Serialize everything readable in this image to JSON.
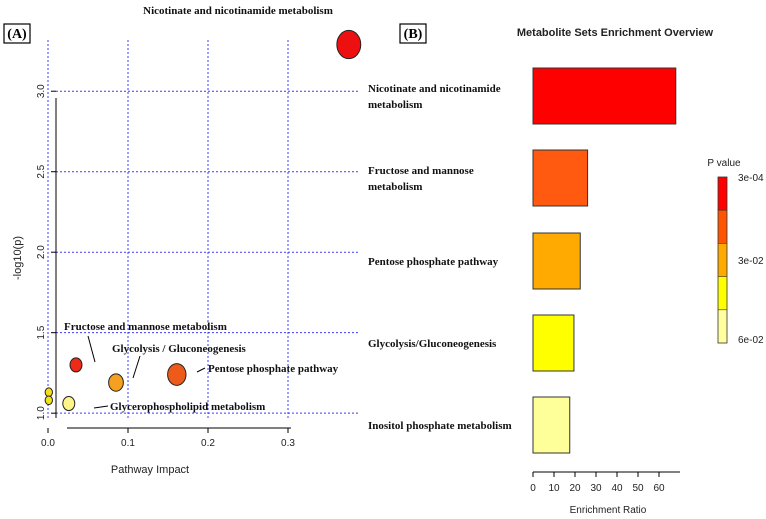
{
  "chart_data": [
    {
      "type": "scatter",
      "panel_label": "(A)",
      "xlabel": "Pathway Impact",
      "ylabel": "-log10(p)",
      "xlim": [
        -0.01,
        0.39
      ],
      "ylim": [
        0.97,
        3.43
      ],
      "x_ticks": [
        0.0,
        0.1,
        0.2,
        0.3
      ],
      "x_tick_labels": [
        "0.0",
        "0.1",
        "0.2",
        "0.3"
      ],
      "y_ticks": [
        1.0,
        1.5,
        2.0,
        2.5,
        3.0
      ],
      "y_tick_labels": [
        "1.0",
        "1.5",
        "2.0",
        "2.5",
        "3.0"
      ],
      "grid": true,
      "points": [
        {
          "label": "Nicotinate and nicotinamide metabolism",
          "x": 0.376,
          "y": 3.29,
          "size": 2.6,
          "color": "#ee1010"
        },
        {
          "label": "Pentose phosphate pathway",
          "x": 0.161,
          "y": 1.24,
          "size": 2.0,
          "color": "#ee5a1a"
        },
        {
          "label": "Glycolysis / Gluconeogenesis",
          "x": 0.085,
          "y": 1.19,
          "size": 1.6,
          "color": "#f5a020"
        },
        {
          "label": "Fructose and mannose metabolism",
          "x": 0.035,
          "y": 1.3,
          "size": 1.3,
          "color": "#ee2a18"
        },
        {
          "label": "Glycerophospholipid metabolism",
          "x": 0.026,
          "y": 1.06,
          "size": 1.3,
          "color": "#fdf48a"
        },
        {
          "label": "",
          "x": 0.001,
          "y": 1.13,
          "size": 0.8,
          "color": "#f6dc1c"
        },
        {
          "label": "",
          "x": 0.001,
          "y": 1.08,
          "size": 0.8,
          "color": "#f2e218"
        }
      ],
      "annotations": [
        {
          "text": "Nicotinate and nicotinamide metabolism",
          "target": 0
        },
        {
          "text": "Fructose and mannose metabolism",
          "target": 3
        },
        {
          "text": "Glycolysis / Gluconeogenesis",
          "target": 2
        },
        {
          "text": "Pentose phosphate pathway",
          "target": 1
        },
        {
          "text": "Glycerophospholipid  metabolism",
          "target": 4
        }
      ]
    },
    {
      "type": "bar",
      "orientation": "horizontal",
      "panel_label": "(B)",
      "title": "Metabolite Sets Enrichment Overview",
      "xlabel": "Enrichment Ratio",
      "xlim": [
        0,
        70
      ],
      "x_ticks": [
        0,
        10,
        20,
        30,
        40,
        50,
        60
      ],
      "categories": [
        [
          "Nicotinate and nicotinamide",
          "metabolism"
        ],
        [
          "Fructose and mannose",
          "metabolism"
        ],
        [
          "Pentose phosphate pathway"
        ],
        [
          "Glycolysis/Gluconeogenesis"
        ],
        [
          "Inositol phosphate metabolism"
        ]
      ],
      "values": [
        68,
        26,
        22.5,
        19.5,
        17.5
      ],
      "colors": [
        "#ff0000",
        "#ff5a10",
        "#ffaa00",
        "#ffff00",
        "#ffff99"
      ],
      "legend": {
        "title": "P value",
        "tick_labels": [
          "3e-04",
          "3e-02",
          "6e-02"
        ],
        "colors": [
          "#ff0000",
          "#ff5500",
          "#ffaa00",
          "#ffff00",
          "#ffffa0"
        ]
      }
    }
  ]
}
